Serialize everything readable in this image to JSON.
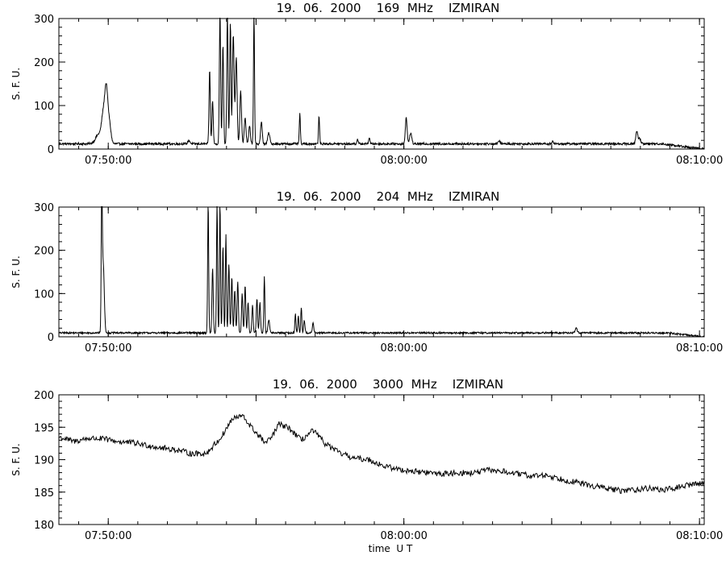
{
  "chart_data": [
    {
      "type": "line",
      "title": "19.  06.  2000    169  MHz    IZMIRAN",
      "ylabel": "S. F. U.",
      "xlabel": "",
      "x_unit": "minutes after 07:48:20 UT",
      "xlim": [
        0,
        21.83
      ],
      "ylim": [
        0,
        300
      ],
      "yticks": [
        0,
        100,
        200,
        300
      ],
      "xticks": [
        {
          "pos": 1.67,
          "label": "07:50:00"
        },
        {
          "pos": 11.67,
          "label": "08:00:00"
        },
        {
          "pos": 21.67,
          "label": "08:10:00"
        }
      ],
      "grid": false,
      "baseline": 12,
      "tail_drop": {
        "start": 20.4,
        "end": 21.8,
        "to": 0
      },
      "noise": 2.5,
      "spikes": [
        [
          1.35,
          22,
          0.15
        ],
        [
          1.5,
          60,
          0.08
        ],
        [
          1.6,
          115,
          0.07
        ],
        [
          1.7,
          50,
          0.08
        ],
        [
          4.4,
          8,
          0.05
        ],
        [
          5.1,
          170,
          0.03
        ],
        [
          5.2,
          100,
          0.03
        ],
        [
          5.45,
          300,
          0.03
        ],
        [
          5.55,
          230,
          0.03
        ],
        [
          5.7,
          300,
          0.03
        ],
        [
          5.8,
          280,
          0.03
        ],
        [
          5.9,
          250,
          0.04
        ],
        [
          6.0,
          200,
          0.04
        ],
        [
          6.15,
          120,
          0.04
        ],
        [
          6.3,
          60,
          0.04
        ],
        [
          6.45,
          40,
          0.04
        ],
        [
          6.6,
          300,
          0.025
        ],
        [
          6.85,
          50,
          0.04
        ],
        [
          7.1,
          25,
          0.05
        ],
        [
          8.15,
          70,
          0.025
        ],
        [
          8.8,
          65,
          0.025
        ],
        [
          10.1,
          10,
          0.03
        ],
        [
          10.5,
          15,
          0.03
        ],
        [
          11.75,
          62,
          0.04
        ],
        [
          11.9,
          25,
          0.05
        ],
        [
          14.9,
          8,
          0.04
        ],
        [
          16.7,
          6,
          0.04
        ],
        [
          19.55,
          28,
          0.05
        ],
        [
          19.65,
          12,
          0.05
        ]
      ]
    },
    {
      "type": "line",
      "title": "19.  06.  2000    204  MHz    IZMIRAN",
      "ylabel": "S. F. U.",
      "xlabel": "",
      "x_unit": "minutes after 07:48:20 UT",
      "xlim": [
        0,
        21.83
      ],
      "ylim": [
        0,
        300
      ],
      "yticks": [
        0,
        100,
        200,
        300
      ],
      "xticks": [
        {
          "pos": 1.67,
          "label": "07:50:00"
        },
        {
          "pos": 11.67,
          "label": "08:00:00"
        },
        {
          "pos": 21.67,
          "label": "08:10:00"
        }
      ],
      "grid": false,
      "baseline": 9,
      "tail_drop": {
        "start": 20.6,
        "end": 21.8,
        "to": 0
      },
      "noise": 2,
      "spikes": [
        [
          1.45,
          300,
          0.025
        ],
        [
          1.5,
          160,
          0.05
        ],
        [
          5.05,
          300,
          0.025
        ],
        [
          5.2,
          150,
          0.03
        ],
        [
          5.35,
          300,
          0.025
        ],
        [
          5.45,
          300,
          0.025
        ],
        [
          5.55,
          200,
          0.03
        ],
        [
          5.65,
          230,
          0.025
        ],
        [
          5.75,
          160,
          0.03
        ],
        [
          5.85,
          130,
          0.03
        ],
        [
          5.95,
          100,
          0.03
        ],
        [
          6.05,
          120,
          0.03
        ],
        [
          6.2,
          90,
          0.03
        ],
        [
          6.3,
          110,
          0.03
        ],
        [
          6.4,
          70,
          0.03
        ],
        [
          6.55,
          65,
          0.03
        ],
        [
          6.7,
          80,
          0.03
        ],
        [
          6.8,
          70,
          0.03
        ],
        [
          6.95,
          130,
          0.025
        ],
        [
          7.1,
          30,
          0.04
        ],
        [
          8.0,
          45,
          0.025
        ],
        [
          8.1,
          40,
          0.025
        ],
        [
          8.2,
          60,
          0.025
        ],
        [
          8.3,
          30,
          0.03
        ],
        [
          8.6,
          25,
          0.03
        ],
        [
          17.5,
          10,
          0.05
        ]
      ]
    },
    {
      "type": "line",
      "title": "19.  06.  2000    3000  MHz    IZMIRAN",
      "ylabel": "S. F. U.",
      "xlabel": "time  U T",
      "x_unit": "minutes after 07:48:20 UT",
      "xlim": [
        0,
        21.83
      ],
      "ylim": [
        180,
        200
      ],
      "yticks": [
        180,
        185,
        190,
        195,
        200
      ],
      "xticks": [
        {
          "pos": 1.67,
          "label": "07:50:00"
        },
        {
          "pos": 11.67,
          "label": "08:00:00"
        },
        {
          "pos": 21.67,
          "label": "08:10:00"
        }
      ],
      "grid": false,
      "noise": 0.45,
      "x": [
        0,
        0.5,
        1,
        1.5,
        2,
        2.5,
        3,
        3.5,
        4,
        4.5,
        5,
        5.5,
        5.85,
        6.2,
        6.6,
        7.0,
        7.2,
        7.45,
        7.6,
        7.8,
        8.2,
        8.6,
        9.0,
        9.5,
        10,
        10.5,
        11,
        11.5,
        12,
        12.5,
        13,
        13.5,
        14,
        14.5,
        15,
        15.5,
        16,
        16.5,
        17,
        17.5,
        18,
        18.5,
        19,
        19.5,
        20,
        20.5,
        21,
        21.4,
        21.83
      ],
      "y": [
        193.5,
        192.8,
        193.3,
        193.2,
        192.8,
        192.6,
        192.2,
        191.8,
        191.5,
        190.9,
        191.0,
        193.5,
        196.2,
        196.8,
        194.5,
        192.5,
        193.5,
        195.5,
        195.2,
        194.8,
        193.0,
        194.5,
        192.5,
        191.0,
        190.2,
        190.0,
        189.0,
        188.5,
        188.2,
        188.0,
        187.8,
        188.0,
        187.9,
        188.4,
        188.2,
        187.8,
        187.5,
        187.6,
        187.0,
        186.5,
        186.0,
        185.6,
        185.2,
        185.4,
        185.6,
        185.3,
        185.8,
        186.2,
        186.4
      ]
    }
  ]
}
